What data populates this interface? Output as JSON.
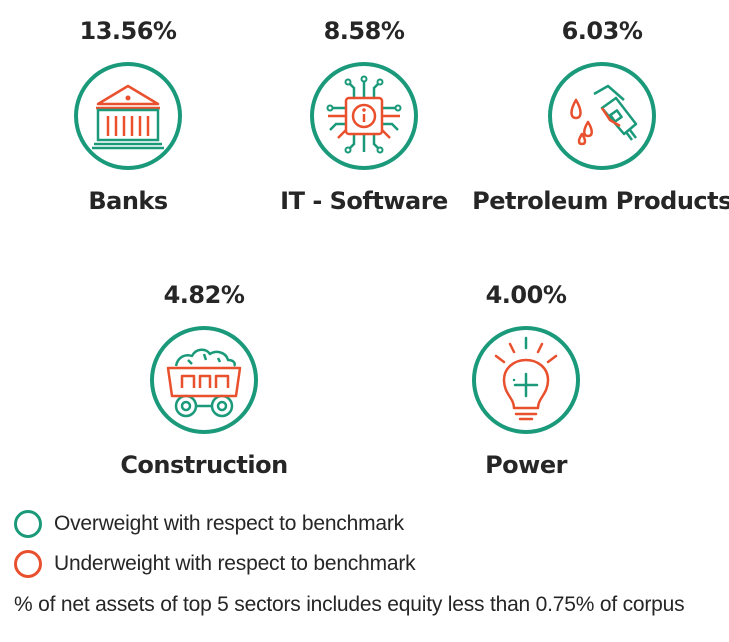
{
  "colors": {
    "overweight": "#1a9a7a",
    "underweight": "#e8502e",
    "text": "#262626"
  },
  "sectors": [
    {
      "name": "Banks",
      "percent": "13.56%",
      "icon": "bank-building-icon",
      "weighting": "overweight"
    },
    {
      "name": "IT - Software",
      "percent": "8.58%",
      "icon": "microchip-icon",
      "weighting": "overweight"
    },
    {
      "name": "Petroleum Products",
      "percent": "6.03%",
      "icon": "fuel-nozzle-icon",
      "weighting": "overweight"
    },
    {
      "name": "Construction",
      "percent": "4.82%",
      "icon": "mining-cart-icon",
      "weighting": "overweight"
    },
    {
      "name": "Power",
      "percent": "4.00%",
      "icon": "light-bulb-icon",
      "weighting": "overweight"
    }
  ],
  "legend": {
    "overweight": "Overweight with respect to benchmark",
    "underweight": "Underweight with respect to benchmark"
  },
  "footnote": "% of net assets of top 5 sectors includes equity less than 0.75% of corpus"
}
